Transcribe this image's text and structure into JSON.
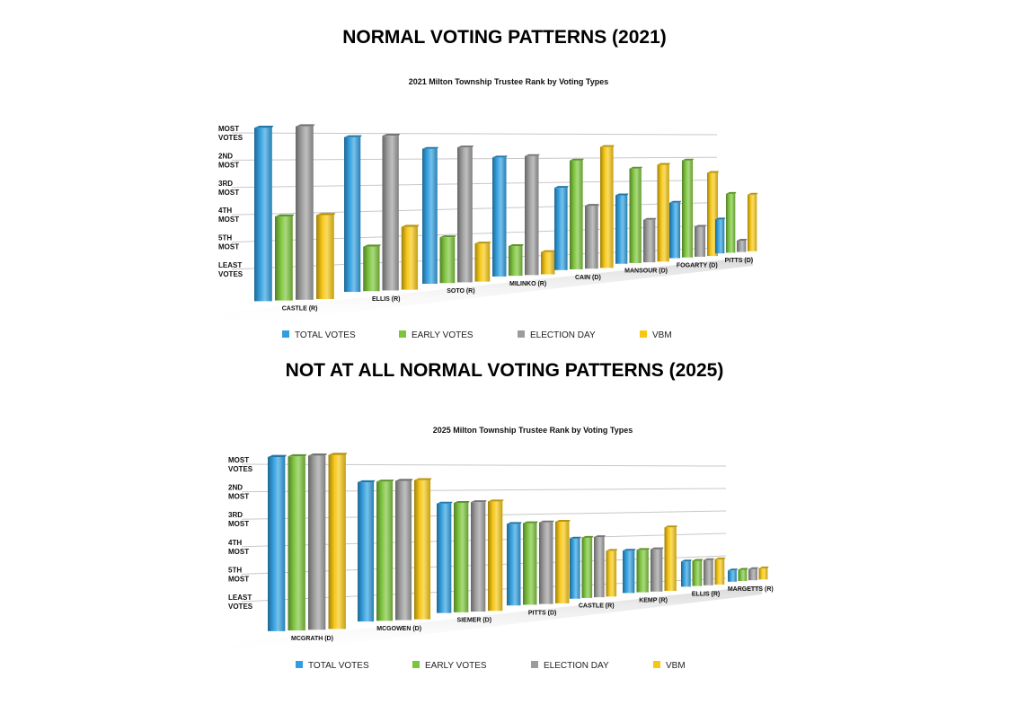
{
  "titles": {
    "top": "NORMAL VOTING PATTERNS (2021)",
    "bottom": "NOT AT ALL NORMAL VOTING PATTERNS (2025)"
  },
  "series_colors": {
    "TOTAL VOTES": "#2f9fe0",
    "EARLY VOTES": "#7cc53a",
    "ELECTION DAY": "#9c9c9c",
    "VBM": "#f7c711"
  },
  "chart_data": [
    {
      "type": "bar",
      "title": "2021 Milton Township Trustee Rank by Voting Types",
      "y_tick_labels": [
        [
          "MOST",
          "VOTES"
        ],
        [
          "2ND",
          "MOST"
        ],
        [
          "3RD",
          "MOST"
        ],
        [
          "4TH",
          "MOST"
        ],
        [
          "5TH",
          "MOST"
        ],
        [
          "LEAST",
          "VOTES"
        ]
      ],
      "categories": [
        "CASTLE (R)",
        "ELLIS (R)",
        "SOTO (R)",
        "MILINKO (R)",
        "CAIN (D)",
        "MANSOUR (D)",
        "FOGARTY (D)",
        "PITTS (D)"
      ],
      "series": [
        {
          "name": "TOTAL VOTES",
          "values": [
            6.4,
            5.9,
            5.3,
            4.8,
            3.4,
            2.9,
            2.4,
            1.5
          ]
        },
        {
          "name": "EARLY VOTES",
          "values": [
            3.1,
            1.7,
            1.8,
            1.2,
            4.5,
            4.0,
            4.2,
            2.6
          ]
        },
        {
          "name": "ELECTION DAY",
          "values": [
            6.4,
            5.9,
            5.3,
            4.8,
            2.6,
            1.8,
            1.3,
            0.5
          ]
        },
        {
          "name": "VBM",
          "values": [
            3.1,
            2.4,
            1.5,
            0.9,
            5.0,
            4.1,
            3.6,
            2.5
          ]
        }
      ],
      "legend": [
        "TOTAL VOTES",
        "EARLY VOTES",
        "ELECTION DAY",
        "VBM"
      ]
    },
    {
      "type": "bar",
      "title": "2025 Milton Township Trustee Rank by Voting Types",
      "y_tick_labels": [
        [
          "MOST",
          "VOTES"
        ],
        [
          "2ND",
          "MOST"
        ],
        [
          "3RD",
          "MOST"
        ],
        [
          "4TH",
          "MOST"
        ],
        [
          "5TH",
          "MOST"
        ],
        [
          "LEAST",
          "VOTES"
        ]
      ],
      "categories": [
        "MCGRATH (D)",
        "MCGOWEN (D)",
        "SIEMER (D)",
        "PITTS (D)",
        "CASTLE (R)",
        "KEMP (R)",
        "ELLIS (R)",
        "MARGETTS (R)"
      ],
      "series": [
        {
          "name": "TOTAL VOTES",
          "values": [
            6.4,
            5.3,
            4.3,
            3.3,
            2.5,
            1.8,
            1.1,
            0.5
          ]
        },
        {
          "name": "EARLY VOTES",
          "values": [
            6.4,
            5.3,
            4.3,
            3.3,
            2.5,
            1.8,
            1.1,
            0.5
          ]
        },
        {
          "name": "ELECTION DAY",
          "values": [
            6.4,
            5.3,
            4.3,
            3.3,
            2.5,
            1.8,
            1.1,
            0.5
          ]
        },
        {
          "name": "VBM",
          "values": [
            6.4,
            5.3,
            4.3,
            3.3,
            1.9,
            2.7,
            1.1,
            0.5
          ]
        }
      ],
      "legend": [
        "TOTAL VOTES",
        "EARLY VOTES",
        "ELECTION DAY",
        "VBM"
      ]
    }
  ]
}
